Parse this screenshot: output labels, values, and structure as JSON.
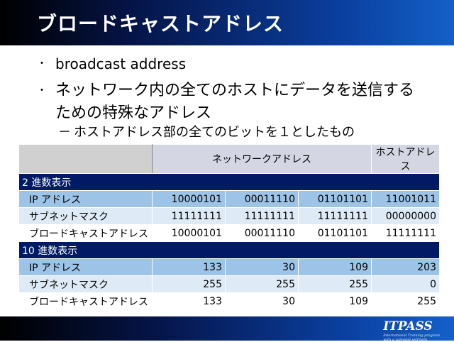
{
  "slide": {
    "title": "ブロードキャストアドレス",
    "bullets": [
      "broadcast address",
      "ネットワーク内の全てのホストにデータを送信するための特殊なアドレス"
    ],
    "sub_bullet": "ホストアドレス部の全てのビットを１としたもの",
    "bullet_marker": "・",
    "sub_marker": "－"
  },
  "table": {
    "headers": [
      "",
      "ネットワークアドレス",
      "ホストアドレス"
    ],
    "sections": [
      {
        "title": "2 進数表示",
        "rows": [
          {
            "label": "IP アドレス",
            "values": [
              "10000101",
              "00011110",
              "01101101",
              "11001011"
            ]
          },
          {
            "label": "サブネットマスク",
            "values": [
              "11111111",
              "11111111",
              "11111111",
              "00000000"
            ]
          },
          {
            "label": "ブロードキャストアドレス",
            "values": [
              "10000101",
              "00011110",
              "01101101",
              "11111111"
            ]
          }
        ]
      },
      {
        "title": "10 進数表示",
        "rows": [
          {
            "label": "IP アドレス",
            "values": [
              "133",
              "30",
              "109",
              "203"
            ]
          },
          {
            "label": "サブネットマスク",
            "values": [
              "255",
              "255",
              "255",
              "0"
            ]
          },
          {
            "label": "ブロードキャストアドレス",
            "values": [
              "133",
              "30",
              "109",
              "255"
            ]
          }
        ]
      }
    ]
  },
  "footer": {
    "logo": "ITPASS",
    "logo_sub_1": "International Training program",
    "logo_sub_2": "with a splendid self-help"
  },
  "colors": {
    "title_bar": "#0a3f9e",
    "section_row": "#001a66",
    "row_light": "#9dc3e6",
    "row_pale": "#deebf7",
    "header_row": "#d4d7e3"
  }
}
